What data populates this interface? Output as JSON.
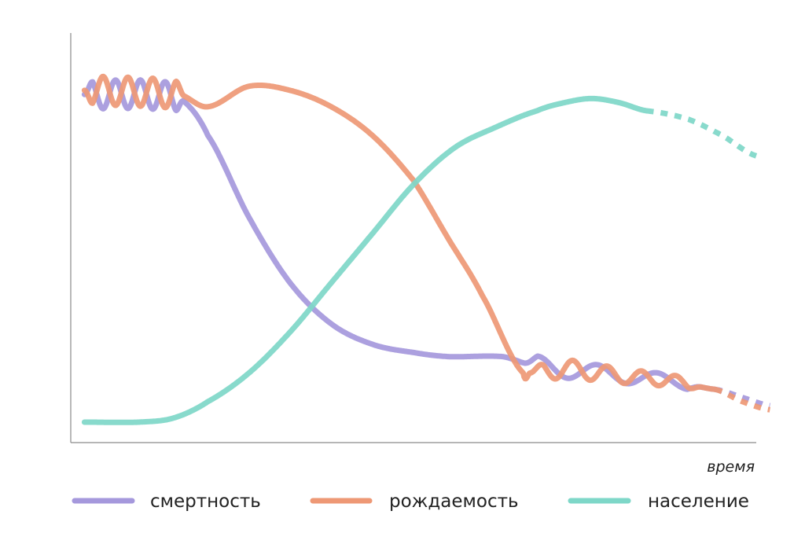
{
  "chart_data": {
    "type": "line",
    "title": "",
    "xlabel": "время",
    "ylabel": "",
    "grid": false,
    "legend_position": "bottom",
    "x_range": [
      0,
      100
    ],
    "y_range": [
      0,
      100
    ],
    "colors": {
      "смертность": "#a598dc",
      "рождаемость": "#ee9875",
      "население": "#7ed7c8",
      "axis": "#8a8a8a",
      "text": "#222222"
    },
    "series": [
      {
        "name": "смертность",
        "color": "#a598dc",
        "line_style": "solid",
        "points": [
          [
            2,
            85
          ],
          [
            16,
            84
          ],
          [
            20,
            75
          ],
          [
            26,
            55
          ],
          [
            32,
            39
          ],
          [
            38,
            29
          ],
          [
            44,
            24
          ],
          [
            50,
            22
          ],
          [
            55,
            21
          ],
          [
            63,
            21
          ],
          [
            67,
            19
          ],
          [
            72,
            18
          ],
          [
            77,
            17
          ],
          [
            82,
            16
          ],
          [
            88,
            15
          ],
          [
            94,
            13
          ]
        ],
        "oscillations": [
          {
            "x_from": 2,
            "x_to": 16.5,
            "amplitude": 3.5,
            "cycles": 4
          },
          {
            "x_from": 66,
            "x_to": 92,
            "amplitude": 2.5,
            "cycles": 3,
            "amplitude_decay": 0.5
          }
        ],
        "projection": {
          "line_style": "dashed",
          "points": [
            [
              94,
              13
            ],
            [
              98,
              11
            ],
            [
              102,
              9
            ]
          ]
        }
      },
      {
        "name": "рождаемость",
        "color": "#ee9875",
        "line_style": "solid",
        "points": [
          [
            2,
            86
          ],
          [
            16,
            85
          ],
          [
            20,
            82
          ],
          [
            26,
            87
          ],
          [
            32,
            86
          ],
          [
            38,
            82
          ],
          [
            44,
            75
          ],
          [
            50,
            64
          ],
          [
            55,
            50
          ],
          [
            60,
            36
          ],
          [
            66,
            17
          ],
          [
            67,
            17
          ],
          [
            72,
            18
          ],
          [
            77,
            17
          ],
          [
            82,
            16
          ],
          [
            88,
            15
          ],
          [
            94,
            13
          ]
        ],
        "oscillations": [
          {
            "x_from": 2,
            "x_to": 16.5,
            "amplitude": 3.5,
            "cycles": 4,
            "phase": 3.1416
          },
          {
            "x_from": 67,
            "x_to": 92,
            "amplitude": 2.5,
            "cycles": 5,
            "amplitude_decay": 0.5
          }
        ],
        "projection": {
          "line_style": "dashed",
          "points": [
            [
              94,
              13
            ],
            [
              98,
              10
            ],
            [
              102,
              8
            ]
          ]
        }
      },
      {
        "name": "население",
        "color": "#7ed7c8",
        "line_style": "solid",
        "points": [
          [
            2,
            5
          ],
          [
            10,
            5
          ],
          [
            15,
            6
          ],
          [
            20,
            10
          ],
          [
            26,
            17
          ],
          [
            32,
            27
          ],
          [
            38,
            39
          ],
          [
            44,
            51
          ],
          [
            50,
            63
          ],
          [
            56,
            72
          ],
          [
            62,
            77
          ],
          [
            68,
            81
          ],
          [
            72,
            83
          ],
          [
            76,
            84
          ],
          [
            80,
            83
          ],
          [
            84,
            81
          ]
        ],
        "projection": {
          "line_style": "dashed",
          "points": [
            [
              84,
              81
            ],
            [
              90,
              79
            ],
            [
              95,
              75
            ],
            [
              100,
              70
            ]
          ]
        }
      }
    ]
  },
  "legend": {
    "items": [
      {
        "label": "смертность",
        "color": "#a598dc"
      },
      {
        "label": "рождаемость",
        "color": "#ee9875"
      },
      {
        "label": "население",
        "color": "#7ed7c8"
      }
    ]
  }
}
